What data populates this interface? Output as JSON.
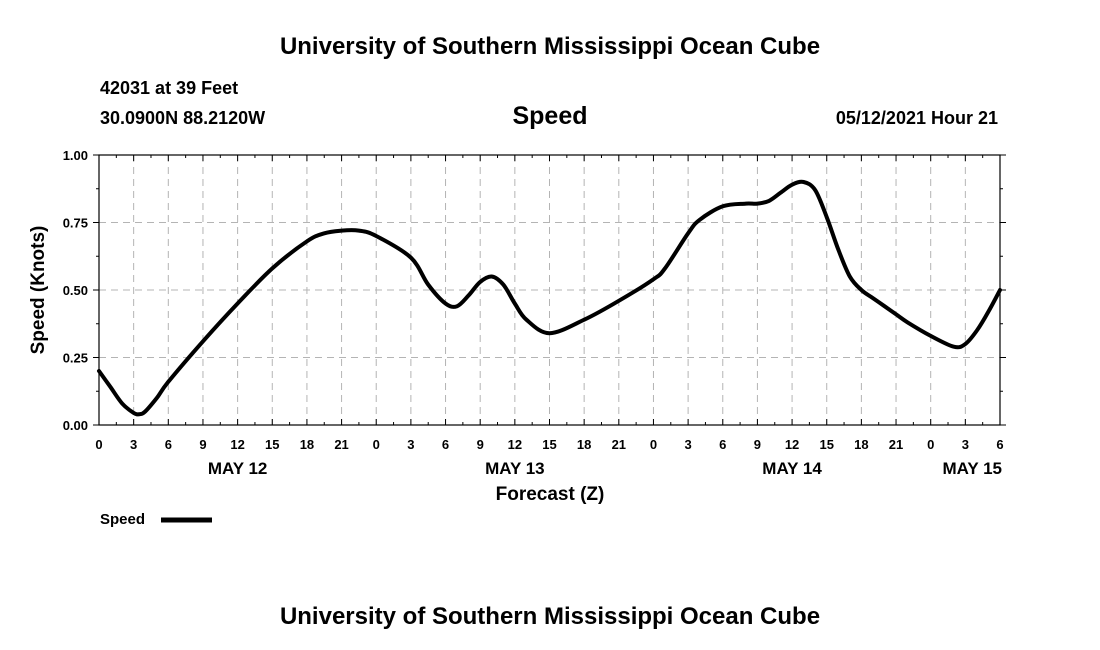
{
  "header": {
    "title_top": "University of Southern Mississippi Ocean Cube",
    "station": "42031 at 39 Feet",
    "location": "30.0900N  88.2120W",
    "variable": "Speed",
    "timestamp": "05/12/2021 Hour 21",
    "title_bottom": "University of Southern Mississippi Ocean Cube"
  },
  "legend": {
    "label": "Speed",
    "color": "#000000"
  },
  "chart_data": {
    "type": "line",
    "title": "Speed",
    "xlabel": "Forecast (Z)",
    "ylabel": "Speed (Knots)",
    "xlim": [
      0,
      78
    ],
    "ylim": [
      0,
      1
    ],
    "grid": true,
    "legend_position": "bottom-left",
    "y_ticks": [
      "0.00",
      "0.25",
      "0.50",
      "0.75",
      "1.00"
    ],
    "x_tick_labels": [
      "0",
      "3",
      "6",
      "9",
      "12",
      "15",
      "18",
      "21",
      "0",
      "3",
      "6",
      "9",
      "12",
      "15",
      "18",
      "21",
      "0",
      "3",
      "6",
      "9",
      "12",
      "15",
      "18",
      "21",
      "0",
      "3",
      "6"
    ],
    "date_labels": [
      {
        "label": "MAY 12",
        "hours_from_start": 12
      },
      {
        "label": "MAY 13",
        "hours_from_start": 36
      },
      {
        "label": "MAY 14",
        "hours_from_start": 60
      },
      {
        "label": "MAY 15",
        "hours_from_start": 78
      }
    ],
    "series": [
      {
        "name": "Speed",
        "x": [
          0,
          1,
          2,
          3,
          3.5,
          4,
          5,
          6,
          9,
          12,
          15,
          18,
          19.5,
          21,
          22.5,
          24,
          27,
          28.5,
          30,
          31,
          32,
          33,
          34,
          35,
          36,
          37,
          39,
          42,
          45,
          48,
          49,
          51,
          52,
          54,
          56,
          57,
          58,
          59,
          60,
          61,
          62,
          63,
          64,
          65,
          66,
          67,
          68,
          69,
          70,
          72,
          74,
          75,
          76,
          77,
          78
        ],
        "y": [
          0.2,
          0.14,
          0.08,
          0.045,
          0.04,
          0.05,
          0.1,
          0.16,
          0.31,
          0.45,
          0.58,
          0.68,
          0.71,
          0.72,
          0.72,
          0.7,
          0.62,
          0.52,
          0.45,
          0.44,
          0.48,
          0.53,
          0.55,
          0.52,
          0.45,
          0.39,
          0.34,
          0.39,
          0.46,
          0.54,
          0.58,
          0.71,
          0.76,
          0.81,
          0.82,
          0.82,
          0.83,
          0.86,
          0.89,
          0.9,
          0.87,
          0.77,
          0.65,
          0.55,
          0.5,
          0.47,
          0.44,
          0.41,
          0.38,
          0.33,
          0.29,
          0.3,
          0.35,
          0.42,
          0.5
        ]
      }
    ]
  }
}
